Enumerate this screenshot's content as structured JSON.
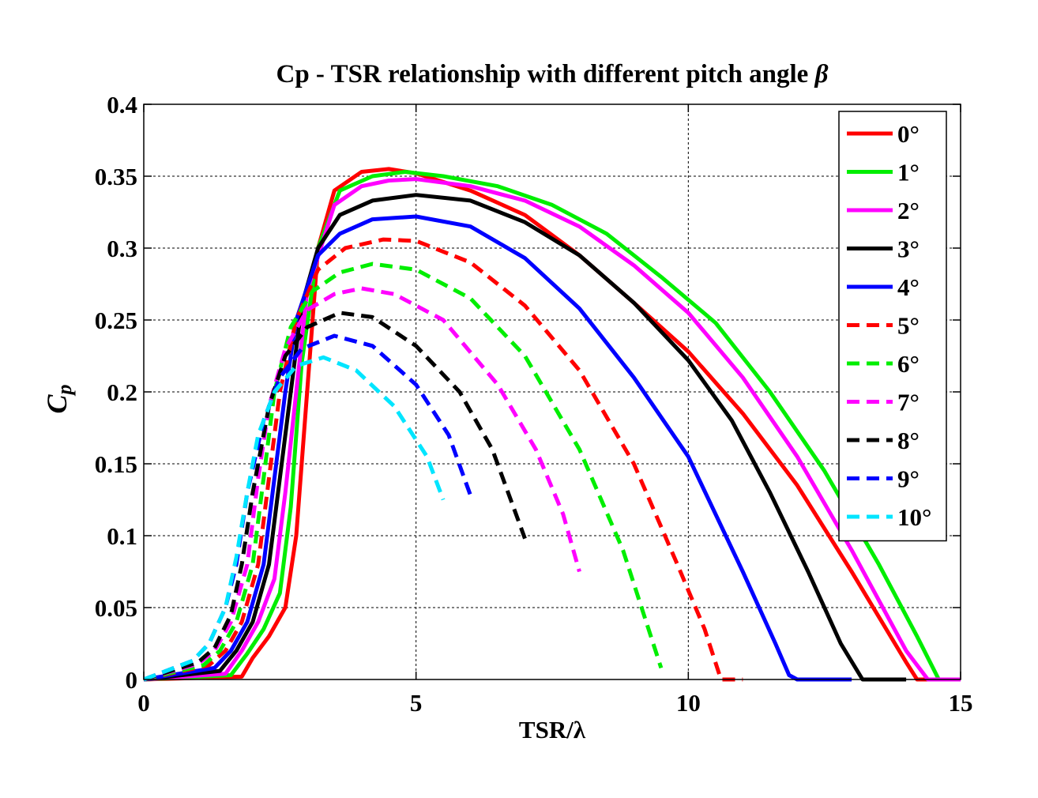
{
  "chart_data": {
    "type": "line",
    "title": "Cp - TSR relationship with different pitch angle",
    "title_symbol": "β",
    "xlabel": "TSR/λ",
    "ylabel_main": "C",
    "ylabel_sub": "p",
    "xlim": [
      0,
      15
    ],
    "ylim": [
      0,
      0.4
    ],
    "xticks": [
      0,
      5,
      10,
      15
    ],
    "yticks": [
      0,
      0.05,
      0.1,
      0.15,
      0.2,
      0.25,
      0.3,
      0.35,
      0.4
    ],
    "xtick_labels": [
      "0",
      "5",
      "10",
      "15"
    ],
    "ytick_labels": [
      "0",
      "0.05",
      "0.1",
      "0.15",
      "0.2",
      "0.25",
      "0.3",
      "0.35",
      "0.4"
    ],
    "grid": true,
    "legend_position": "top-right",
    "series": [
      {
        "name": "0°",
        "color": "#ff0000",
        "dashed": false,
        "x": [
          0,
          1.8,
          2.0,
          2.3,
          2.6,
          2.8,
          3.0,
          3.2,
          3.5,
          4.0,
          4.5,
          5.0,
          6.0,
          7.0,
          8.0,
          9.0,
          10.0,
          11.0,
          12.0,
          13.0,
          14.0,
          14.2,
          15.0
        ],
        "y": [
          0,
          0.002,
          0.015,
          0.03,
          0.05,
          0.1,
          0.2,
          0.3,
          0.34,
          0.353,
          0.355,
          0.352,
          0.34,
          0.323,
          0.295,
          0.262,
          0.228,
          0.185,
          0.135,
          0.075,
          0.012,
          0,
          0
        ]
      },
      {
        "name": "1°",
        "color": "#00ee00",
        "dashed": false,
        "x": [
          0,
          1.6,
          1.9,
          2.2,
          2.5,
          2.7,
          2.9,
          3.2,
          3.6,
          4.2,
          4.8,
          5.5,
          6.5,
          7.5,
          8.5,
          9.5,
          10.5,
          11.5,
          12.5,
          13.5,
          14.2,
          14.6,
          15.0
        ],
        "y": [
          0,
          0.003,
          0.018,
          0.035,
          0.06,
          0.12,
          0.22,
          0.3,
          0.34,
          0.35,
          0.353,
          0.35,
          0.343,
          0.33,
          0.31,
          0.28,
          0.248,
          0.2,
          0.145,
          0.08,
          0.03,
          0,
          0
        ]
      },
      {
        "name": "2°",
        "color": "#ff00ff",
        "dashed": false,
        "x": [
          0,
          1.5,
          1.8,
          2.1,
          2.4,
          2.6,
          2.8,
          3.0,
          3.5,
          4.0,
          4.5,
          5.0,
          6.0,
          7.0,
          8.0,
          9.0,
          10.0,
          11.0,
          12.0,
          13.0,
          14.0,
          14.4,
          15.0
        ],
        "y": [
          0,
          0.004,
          0.02,
          0.04,
          0.07,
          0.13,
          0.2,
          0.27,
          0.33,
          0.343,
          0.347,
          0.348,
          0.343,
          0.333,
          0.315,
          0.288,
          0.255,
          0.21,
          0.155,
          0.09,
          0.02,
          0,
          0
        ]
      },
      {
        "name": "3°",
        "color": "#000000",
        "dashed": false,
        "x": [
          0,
          1.4,
          1.7,
          2.0,
          2.3,
          2.5,
          2.7,
          2.9,
          3.2,
          3.6,
          4.2,
          5.0,
          6.0,
          7.0,
          8.0,
          9.0,
          10.0,
          10.8,
          11.5,
          12.2,
          12.8,
          13.2,
          14.0
        ],
        "y": [
          0,
          0.006,
          0.02,
          0.04,
          0.08,
          0.14,
          0.2,
          0.26,
          0.3,
          0.323,
          0.333,
          0.337,
          0.333,
          0.318,
          0.295,
          0.262,
          0.222,
          0.18,
          0.13,
          0.075,
          0.025,
          0,
          0
        ]
      },
      {
        "name": "4°",
        "color": "#0000ff",
        "dashed": false,
        "x": [
          0,
          1.3,
          1.6,
          1.9,
          2.2,
          2.4,
          2.6,
          2.8,
          3.2,
          3.6,
          4.2,
          5.0,
          6.0,
          7.0,
          8.0,
          9.0,
          10.0,
          11.0,
          11.6,
          11.85,
          12.0,
          13.0
        ],
        "y": [
          0,
          0.008,
          0.02,
          0.04,
          0.08,
          0.14,
          0.2,
          0.25,
          0.295,
          0.31,
          0.32,
          0.322,
          0.315,
          0.293,
          0.258,
          0.21,
          0.155,
          0.075,
          0.025,
          0.003,
          0,
          0
        ]
      },
      {
        "name": "5°",
        "color": "#ff0000",
        "dashed": true,
        "x": [
          0,
          1.2,
          1.5,
          1.8,
          2.1,
          2.3,
          2.5,
          2.8,
          3.2,
          3.7,
          4.4,
          5.0,
          6.0,
          7.0,
          8.0,
          9.0,
          9.8,
          10.3,
          10.6,
          11.0
        ],
        "y": [
          0,
          0.01,
          0.02,
          0.04,
          0.08,
          0.14,
          0.2,
          0.25,
          0.285,
          0.3,
          0.306,
          0.305,
          0.29,
          0.26,
          0.215,
          0.15,
          0.08,
          0.035,
          0,
          0
        ]
      },
      {
        "name": "6°",
        "color": "#00ee00",
        "dashed": true,
        "x": [
          0,
          1.1,
          1.4,
          1.7,
          2.0,
          2.2,
          2.4,
          2.7,
          3.1,
          3.6,
          4.2,
          5.0,
          6.0,
          7.0,
          8.0,
          8.8,
          9.5
        ],
        "y": [
          0,
          0.01,
          0.02,
          0.04,
          0.08,
          0.14,
          0.2,
          0.245,
          0.27,
          0.283,
          0.289,
          0.285,
          0.265,
          0.225,
          0.16,
          0.09,
          0.008
        ]
      },
      {
        "name": "7°",
        "color": "#ff00ff",
        "dashed": true,
        "x": [
          0,
          1.0,
          1.3,
          1.6,
          1.9,
          2.1,
          2.3,
          2.6,
          3.0,
          3.5,
          4.0,
          4.6,
          5.5,
          6.5,
          7.2,
          7.7,
          8.0
        ],
        "y": [
          0,
          0.011,
          0.02,
          0.04,
          0.08,
          0.14,
          0.19,
          0.23,
          0.257,
          0.268,
          0.272,
          0.268,
          0.25,
          0.205,
          0.16,
          0.115,
          0.075
        ]
      },
      {
        "name": "8°",
        "color": "#000000",
        "dashed": true,
        "x": [
          0,
          1.0,
          1.3,
          1.6,
          1.8,
          2.0,
          2.3,
          2.6,
          3.0,
          3.6,
          4.2,
          5.0,
          5.8,
          6.4,
          7.0
        ],
        "y": [
          0,
          0.012,
          0.022,
          0.045,
          0.08,
          0.13,
          0.19,
          0.225,
          0.245,
          0.255,
          0.252,
          0.232,
          0.2,
          0.16,
          0.098
        ]
      },
      {
        "name": "9°",
        "color": "#0000ff",
        "dashed": true,
        "x": [
          0,
          0.9,
          1.2,
          1.5,
          1.7,
          1.9,
          2.2,
          2.5,
          2.9,
          3.5,
          4.2,
          5.0,
          5.6,
          6.0
        ],
        "y": [
          0,
          0.013,
          0.025,
          0.05,
          0.08,
          0.13,
          0.18,
          0.21,
          0.23,
          0.239,
          0.232,
          0.205,
          0.17,
          0.128
        ]
      },
      {
        "name": "10°",
        "color": "#00e5ff",
        "dashed": true,
        "x": [
          0,
          0.9,
          1.2,
          1.5,
          1.7,
          1.9,
          2.1,
          2.4,
          2.8,
          3.3,
          3.9,
          4.6,
          5.2,
          5.5
        ],
        "y": [
          0,
          0.013,
          0.025,
          0.05,
          0.085,
          0.13,
          0.17,
          0.2,
          0.218,
          0.224,
          0.215,
          0.19,
          0.155,
          0.125
        ]
      }
    ]
  }
}
